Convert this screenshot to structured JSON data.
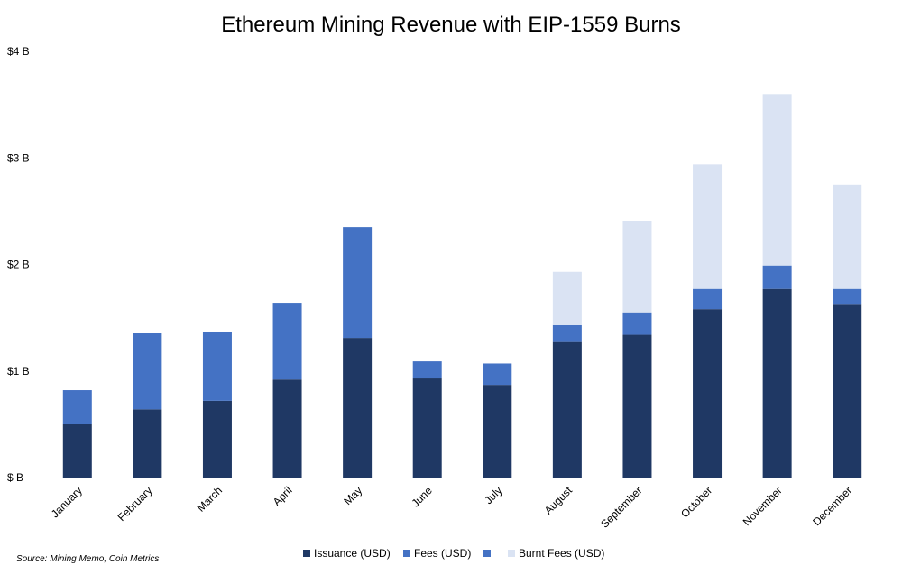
{
  "chart_data": {
    "type": "bar",
    "stacked": true,
    "title": "Ethereum Mining Revenue with EIP-1559 Burns",
    "categories": [
      "January",
      "February",
      "March",
      "April",
      "May",
      "June",
      "July",
      "August",
      "September",
      "October",
      "November",
      "December"
    ],
    "series": [
      {
        "name": "Issuance (USD)",
        "color": "#1f3864",
        "values": [
          0.5,
          0.64,
          0.72,
          0.92,
          1.31,
          0.93,
          0.87,
          1.28,
          1.34,
          1.58,
          1.77,
          1.63
        ]
      },
      {
        "name": "Fees (USD)",
        "color": "#4472c4",
        "values": [
          0.32,
          0.72,
          0.65,
          0.72,
          1.04,
          0.16,
          0.2,
          0.15,
          0.21,
          0.19,
          0.22,
          0.14
        ]
      },
      {
        "name": "Burnt Fees (USD)",
        "color": "#dae3f3",
        "values": [
          0,
          0,
          0,
          0,
          0,
          0,
          0,
          0.5,
          0.86,
          1.17,
          1.61,
          0.98
        ]
      }
    ],
    "ylim": [
      0,
      4
    ],
    "yticks": [
      0,
      1,
      2,
      3,
      4
    ],
    "ytick_labels": [
      "$ B",
      "$1 B",
      "$2 B",
      "$3 B",
      "$4 B"
    ],
    "grid": false,
    "legend": {
      "position": "bottom",
      "entries": [
        {
          "label": "Issuance (USD)",
          "color": "#1f3864"
        },
        {
          "label": "Fees (USD)",
          "color": "#4472c4"
        },
        {
          "label": "",
          "color": "#4472c4"
        },
        {
          "label": "Burnt Fees (USD)",
          "color": "#dae3f3"
        }
      ]
    },
    "source": "Source: Mining Memo, Coin Metrics"
  }
}
